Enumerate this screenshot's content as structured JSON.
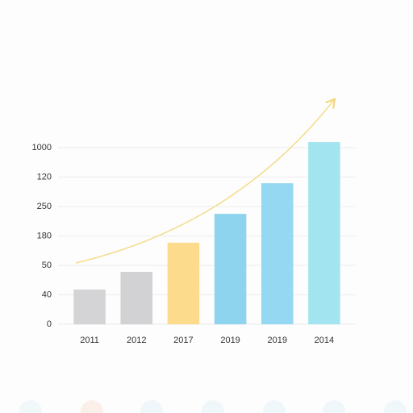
{
  "chart_data": {
    "type": "bar",
    "categories": [
      "2011",
      "2012",
      "2017",
      "2019",
      "2019",
      "2014"
    ],
    "values": [
      1.18,
      1.78,
      2.77,
      3.75,
      4.79,
      6.19
    ],
    "colors": [
      "#d4d4d6",
      "#d2d2d4",
      "#fcdc8c",
      "#8ed4ef",
      "#94d8f1",
      "#a2e4ef"
    ],
    "ylim": [
      0,
      6.4
    ],
    "yticks": [
      0,
      {
        "value": 1,
        "label": "40"
      },
      {
        "value": 2,
        "label": "50"
      },
      {
        "value": 3,
        "label": "180"
      },
      {
        "value": 4,
        "label": "250"
      },
      {
        "value": 5,
        "label": "120"
      },
      {
        "value": 6,
        "label": "1000"
      }
    ],
    "grid": true
  }
}
